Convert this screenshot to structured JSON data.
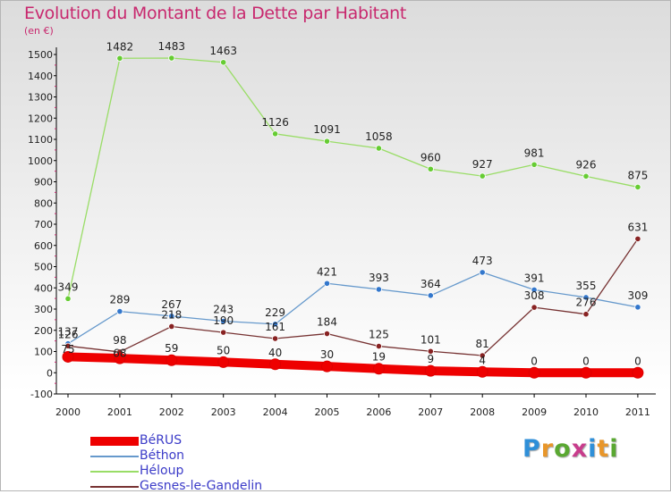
{
  "title": "Evolution du Montant de la Dette par Habitant",
  "unit": "(en €)",
  "logo": {
    "text": "Proxiti",
    "letter_colors": [
      "#2f8fd8",
      "#e8962a",
      "#5aa832",
      "#c83c8c",
      "#2f8fd8",
      "#e8962a",
      "#5aa832"
    ]
  },
  "chart_data": {
    "type": "line",
    "title": "Evolution du Montant de la Dette par Habitant",
    "ylabel": "(en €)",
    "xlabel": "",
    "x": [
      "2000",
      "2001",
      "2002",
      "2003",
      "2004",
      "2005",
      "2006",
      "2007",
      "2008",
      "2009",
      "2010",
      "2011"
    ],
    "ylim": [
      -100,
      1500
    ],
    "yticks": [
      "-100",
      "0",
      "100",
      "200",
      "300",
      "400",
      "500",
      "600",
      "700",
      "800",
      "900",
      "1000",
      "1100",
      "1200",
      "1300",
      "1400",
      "1500"
    ],
    "grid": false,
    "legend_position": "bottom-left",
    "series": [
      {
        "name": "BéRUS",
        "color": "#ee0000",
        "style": "thick",
        "values": [
          75,
          68,
          59,
          50,
          40,
          30,
          19,
          9,
          4,
          0,
          0,
          0
        ],
        "labels": [
          "",
          "",
          "59",
          "50",
          "40",
          "30",
          "19",
          "9",
          "4",
          "0",
          "0",
          "0"
        ]
      },
      {
        "name": "Béthon",
        "color": "#6699cc",
        "marker": "#3377cc",
        "values": [
          137,
          289,
          267,
          243,
          229,
          421,
          393,
          364,
          473,
          391,
          355,
          309
        ],
        "labels": [
          "137",
          "289",
          "267",
          "243",
          "229",
          "421",
          "393",
          "364",
          "473",
          "391",
          "355",
          "309"
        ]
      },
      {
        "name": "Héloup",
        "color": "#99dd66",
        "marker": "#66cc33",
        "values": [
          349,
          1482,
          1483,
          1463,
          1126,
          1091,
          1058,
          960,
          927,
          981,
          926,
          875
        ],
        "labels": [
          "349",
          "1482",
          "1483",
          "1463",
          "1126",
          "1091",
          "1058",
          "960",
          "927",
          "981",
          "926",
          "875"
        ]
      },
      {
        "name": "Gesnes-le-Gandelin",
        "color": "#773333",
        "marker": "#882222",
        "values": [
          126,
          98,
          218,
          190,
          161,
          184,
          125,
          101,
          81,
          308,
          276,
          631
        ],
        "labels": [
          "126",
          "98",
          "218",
          "190",
          "161",
          "184",
          "125",
          "101",
          "81",
          "308",
          "276",
          "631"
        ]
      }
    ],
    "extra_labels": [
      "75",
      "68"
    ]
  }
}
